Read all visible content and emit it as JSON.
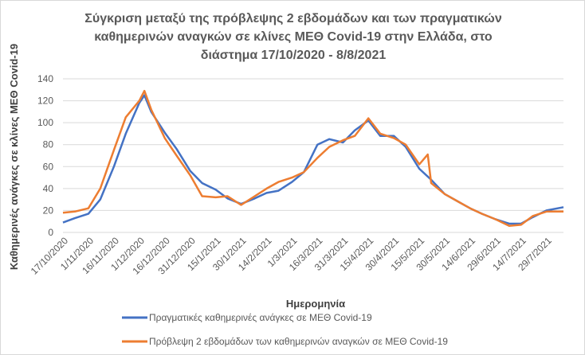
{
  "chart_data": {
    "type": "line",
    "title": [
      "Σύγκριση μεταξύ της πρόβλεψης 2 εβδομάδων και των πραγματικών",
      "καθημερινών αναγκών σε κλίνες ΜΕΘ Covid-19 στην Ελλάδα, στο",
      "διάστημα 17/10/2020 - 8/8/2021"
    ],
    "xlabel": "Ημερομηνία",
    "ylabel": "Καθημερινές ανάγκες σε κλίνες ΜΕΘ Covid-19",
    "xlim": [
      "2020-10-17",
      "2021-08-08"
    ],
    "ylim": [
      0,
      140
    ],
    "yticks": [
      0,
      20,
      40,
      60,
      80,
      100,
      120,
      140
    ],
    "xtick_labels": [
      "17/10/2020",
      "1/11/2020",
      "16/11/2020",
      "1/12/2020",
      "16/12/2020",
      "31/12/2020",
      "15/1/2021",
      "30/1/2021",
      "14/2/2021",
      "1/3/2021",
      "16/3/2021",
      "31/3/2021",
      "15/4/2021",
      "30/4/2021",
      "15/5/2021",
      "30/5/2021",
      "14/6/2021",
      "29/6/2021",
      "14/7/2021",
      "29/7/2021"
    ],
    "grid": true,
    "legend_position": "bottom",
    "series": [
      {
        "name": "Πραγματικές καθημερινές ανάγκες σε ΜΕΘ Covid-19",
        "color": "#4472C4",
        "x": [
          "2020-10-17",
          "2020-10-24",
          "2020-11-01",
          "2020-11-08",
          "2020-11-16",
          "2020-11-23",
          "2020-12-01",
          "2020-12-04",
          "2020-12-08",
          "2020-12-16",
          "2020-12-23",
          "2020-12-31",
          "2021-01-07",
          "2021-01-15",
          "2021-01-22",
          "2021-01-30",
          "2021-02-07",
          "2021-02-14",
          "2021-02-21",
          "2021-03-01",
          "2021-03-08",
          "2021-03-16",
          "2021-03-23",
          "2021-03-31",
          "2021-04-07",
          "2021-04-15",
          "2021-04-22",
          "2021-04-30",
          "2021-05-07",
          "2021-05-15",
          "2021-05-22",
          "2021-05-30",
          "2021-06-07",
          "2021-06-14",
          "2021-06-21",
          "2021-06-29",
          "2021-07-07",
          "2021-07-14",
          "2021-07-21",
          "2021-07-29",
          "2021-08-08"
        ],
        "y": [
          9,
          13,
          17,
          30,
          60,
          90,
          118,
          125,
          110,
          91,
          76,
          56,
          45,
          39,
          31,
          26,
          31,
          36,
          38,
          46,
          55,
          80,
          85,
          82,
          93,
          102,
          88,
          88,
          78,
          58,
          48,
          35,
          28,
          22,
          17,
          12,
          8,
          8,
          14,
          20,
          23
        ]
      },
      {
        "name": "Πρόβλεψη 2 εβδομάδων των καθημερινών αναγκών σε ΜΕΘ Covid-19",
        "color": "#ED7D31",
        "x": [
          "2020-10-17",
          "2020-10-24",
          "2020-11-01",
          "2020-11-08",
          "2020-11-16",
          "2020-11-23",
          "2020-12-01",
          "2020-12-04",
          "2020-12-08",
          "2020-12-16",
          "2020-12-23",
          "2020-12-31",
          "2021-01-07",
          "2021-01-15",
          "2021-01-22",
          "2021-01-30",
          "2021-02-07",
          "2021-02-14",
          "2021-02-21",
          "2021-03-01",
          "2021-03-08",
          "2021-03-16",
          "2021-03-23",
          "2021-03-31",
          "2021-04-07",
          "2021-04-15",
          "2021-04-22",
          "2021-04-30",
          "2021-05-07",
          "2021-05-15",
          "2021-05-20",
          "2021-05-22",
          "2021-05-30",
          "2021-06-07",
          "2021-06-14",
          "2021-06-21",
          "2021-06-29",
          "2021-07-07",
          "2021-07-14",
          "2021-07-21",
          "2021-07-29",
          "2021-08-08"
        ],
        "y": [
          18,
          19,
          22,
          40,
          75,
          105,
          120,
          129,
          112,
          86,
          70,
          52,
          33,
          32,
          33,
          25,
          33,
          40,
          46,
          50,
          55,
          68,
          78,
          84,
          88,
          104,
          90,
          86,
          80,
          62,
          71,
          45,
          35,
          28,
          22,
          17,
          12,
          6,
          7,
          15,
          19,
          19
        ]
      }
    ]
  }
}
